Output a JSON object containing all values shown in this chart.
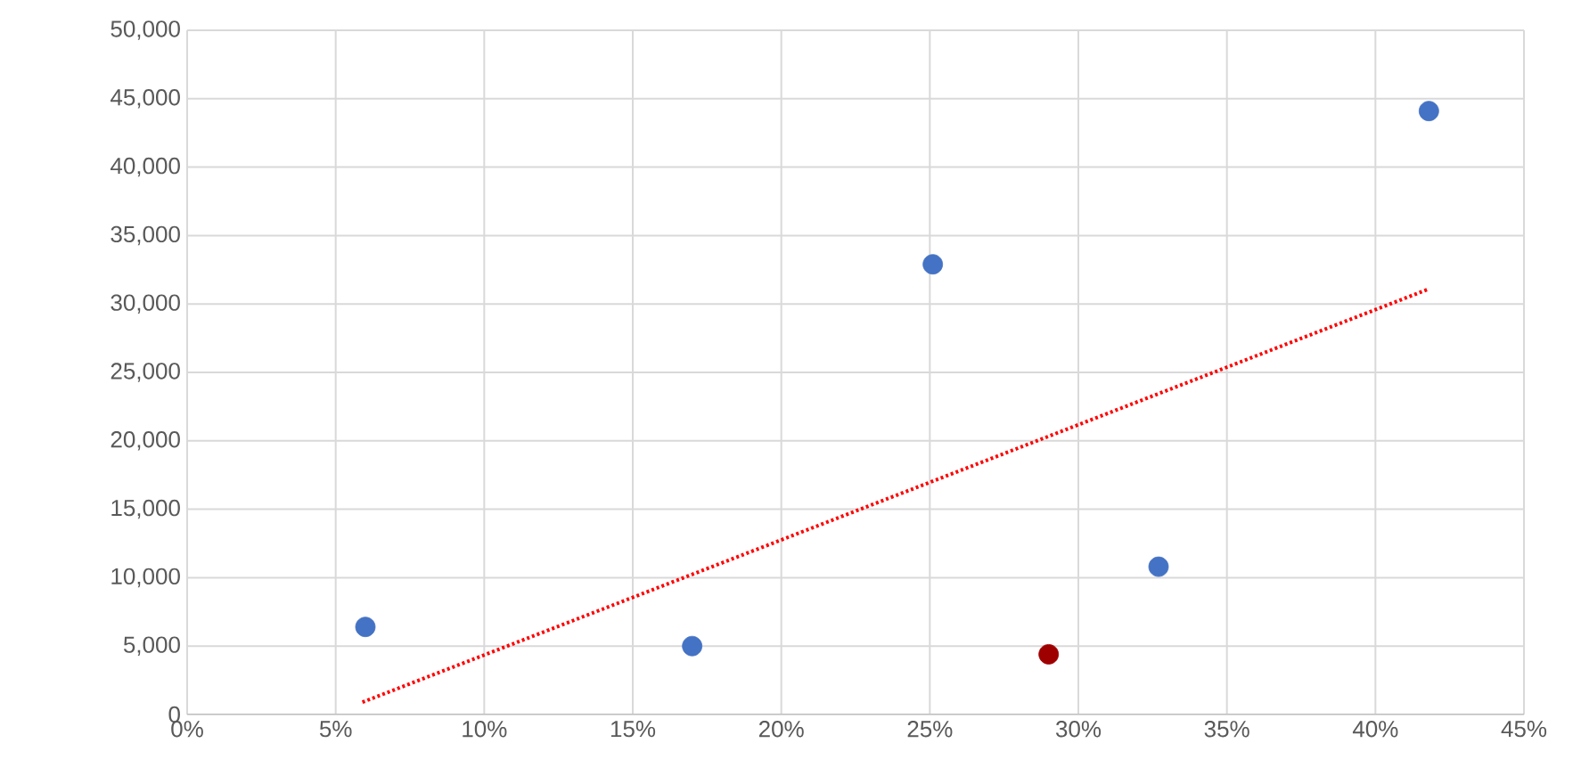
{
  "chart_data": {
    "type": "scatter",
    "marker": "circle",
    "grid": true,
    "xlim": [
      0,
      45
    ],
    "ylim": [
      0,
      50000
    ],
    "xticks": [
      {
        "value": 0,
        "label": "0%"
      },
      {
        "value": 5,
        "label": "5%"
      },
      {
        "value": 10,
        "label": "10%"
      },
      {
        "value": 15,
        "label": "15%"
      },
      {
        "value": 20,
        "label": "20%"
      },
      {
        "value": 25,
        "label": "25%"
      },
      {
        "value": 30,
        "label": "30%"
      },
      {
        "value": 35,
        "label": "35%"
      },
      {
        "value": 40,
        "label": "40%"
      },
      {
        "value": 45,
        "label": "45%"
      }
    ],
    "yticks": [
      {
        "value": 0,
        "label": "0"
      },
      {
        "value": 5000,
        "label": "5,000"
      },
      {
        "value": 10000,
        "label": "10,000"
      },
      {
        "value": 15000,
        "label": "15,000"
      },
      {
        "value": 20000,
        "label": "20,000"
      },
      {
        "value": 25000,
        "label": "25,000"
      },
      {
        "value": 30000,
        "label": "30,000"
      },
      {
        "value": 35000,
        "label": "35,000"
      },
      {
        "value": 40000,
        "label": "40,000"
      },
      {
        "value": 45000,
        "label": "45,000"
      },
      {
        "value": 50000,
        "label": "50,000"
      }
    ],
    "series": [
      {
        "type": "line",
        "line_style": "dotted",
        "marker": "none",
        "color": "#ff0000",
        "x": [
          5.9,
          41.8
        ],
        "values": [
          900,
          31100
        ]
      },
      {
        "color": "#4472c4",
        "x": [
          6,
          17,
          25.1,
          32.7,
          41.8
        ],
        "values": [
          6400,
          5000,
          32900,
          10800,
          44100
        ]
      },
      {
        "color": "#9e0000",
        "x": [
          29
        ],
        "values": [
          4400
        ]
      }
    ]
  }
}
